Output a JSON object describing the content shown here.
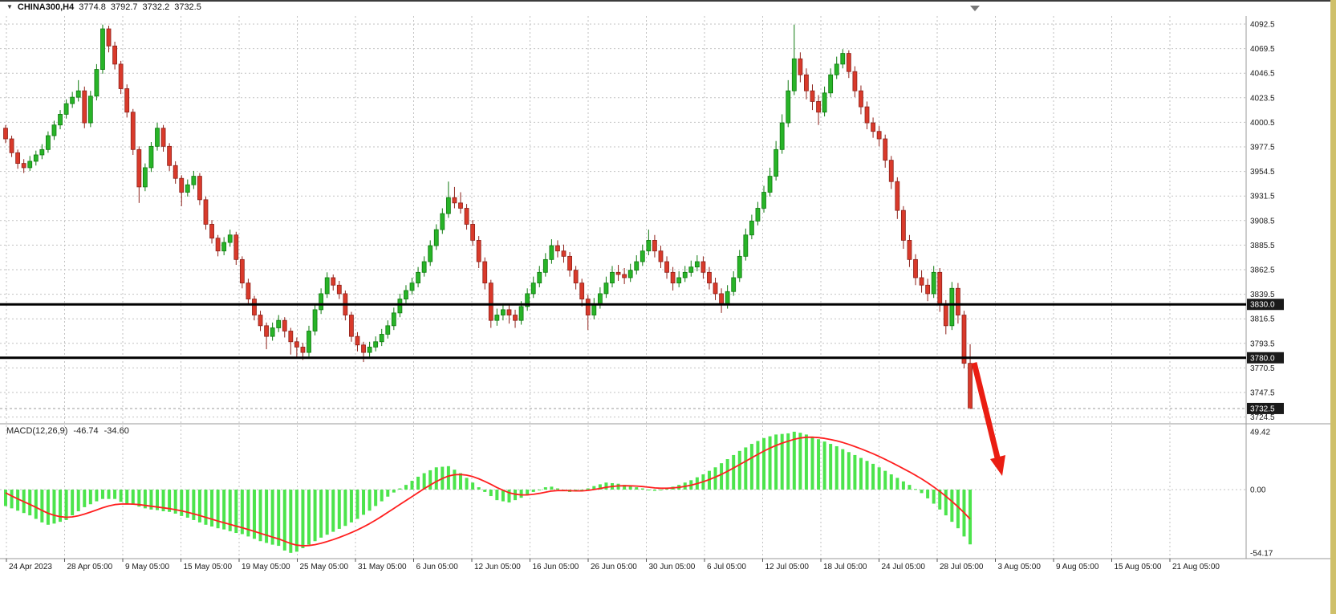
{
  "header": {
    "symbol": "CHINA300,H4",
    "open": "3774.8",
    "high": "3792.7",
    "low": "3732.2",
    "close": "3732.5"
  },
  "indicator_header": {
    "label": "MACD(12,26,9)",
    "main_value": "-46.74",
    "signal_value": "-34.60"
  },
  "icons": {
    "dropdown_triangle": "▼"
  },
  "price_axis": {
    "ticks": [
      "4092.5",
      "4069.5",
      "4046.5",
      "4023.5",
      "4000.5",
      "3977.5",
      "3954.5",
      "3931.5",
      "3908.5",
      "3885.5",
      "3862.5",
      "3839.5",
      "3816.5",
      "3793.5",
      "3770.5",
      "3747.5",
      "3724.5"
    ],
    "tags": [
      {
        "label": "3830.0",
        "value": 3830.0,
        "type": "level"
      },
      {
        "label": "3780.0",
        "value": 3780.0,
        "type": "level"
      },
      {
        "label": "3732.5",
        "value": 3732.5,
        "type": "last-price"
      }
    ]
  },
  "macd_axis": {
    "ticks": [
      {
        "label": "49.42",
        "value": 49.42
      },
      {
        "label": "0.00",
        "value": 0
      },
      {
        "label": "-54.17",
        "value": -54.17
      }
    ]
  },
  "time_axis": {
    "labels": [
      "24 Apr 2023",
      "28 Apr 05:00",
      "9 May 05:00",
      "15 May 05:00",
      "19 May 05:00",
      "25 May 05:00",
      "31 May 05:00",
      "6 Jun 05:00",
      "12 Jun 05:00",
      "16 Jun 05:00",
      "26 Jun 05:00",
      "30 Jun 05:00",
      "6 Jul 05:00",
      "12 Jul 05:00",
      "18 Jul 05:00",
      "24 Jul 05:00",
      "28 Jul 05:00",
      "3 Aug 05:00",
      "9 Aug 05:00",
      "15 Aug 05:00",
      "21 Aug 05:00"
    ]
  },
  "colors": {
    "background": "#ffffff",
    "grid": "#c2c2c2",
    "bull": "#28b428",
    "bull_border": "#0f7a0f",
    "bear": "#d93a2b",
    "bear_border": "#8e211a",
    "histogram": "#4ce44c",
    "signal_line": "#ff1f1f",
    "level_line": "#000000",
    "tag_bg": "#1a1a1a",
    "tag_text": "#ffffff",
    "annotation_arrow": "#ea1d12",
    "right_strip": "#cfc06a"
  },
  "chart_data": [
    {
      "type": "candlestick",
      "title": "CHINA300,H4",
      "symbol": "CHINA300",
      "timeframe": "H4",
      "ylim": [
        3713,
        4099
      ],
      "y_ticks": [
        4092.5,
        4069.5,
        4046.5,
        4023.5,
        4000.5,
        3977.5,
        3954.5,
        3931.5,
        3908.5,
        3885.5,
        3862.5,
        3839.5,
        3816.5,
        3793.5,
        3770.5,
        3747.5,
        3724.5
      ],
      "x_labels": [
        "24 Apr 2023",
        "28 Apr 05:00",
        "9 May 05:00",
        "15 May 05:00",
        "19 May 05:00",
        "25 May 05:00",
        "31 May 05:00",
        "6 Jun 05:00",
        "12 Jun 05:00",
        "16 Jun 05:00",
        "26 Jun 05:00",
        "30 Jun 05:00",
        "6 Jul 05:00",
        "12 Jul 05:00",
        "18 Jul 05:00",
        "24 Jul 05:00",
        "28 Jul 05:00",
        "3 Aug 05:00",
        "9 Aug 05:00",
        "15 Aug 05:00",
        "21 Aug 05:00"
      ],
      "levels": [
        3830.0,
        3780.0
      ],
      "last_price": 3732.5,
      "current_ohlc": [
        3774.8,
        3792.7,
        3732.2,
        3732.5
      ],
      "candles": [
        [
          3995,
          3998,
          3981,
          3985
        ],
        [
          3985,
          3988,
          3968,
          3972
        ],
        [
          3972,
          3975,
          3957,
          3962
        ],
        [
          3962,
          3966,
          3953,
          3958
        ],
        [
          3958,
          3969,
          3955,
          3964
        ],
        [
          3964,
          3974,
          3960,
          3970
        ],
        [
          3970,
          3980,
          3966,
          3975
        ],
        [
          3975,
          3992,
          3972,
          3988
        ],
        [
          3988,
          4002,
          3984,
          3998
        ],
        [
          3998,
          4012,
          3994,
          4008
        ],
        [
          4008,
          4022,
          4004,
          4018
        ],
        [
          4018,
          4029,
          4014,
          4024
        ],
        [
          4024,
          4040,
          4020,
          4030
        ],
        [
          4030,
          4034,
          3995,
          4000
        ],
        [
          4000,
          4030,
          3996,
          4025
        ],
        [
          4025,
          4055,
          4021,
          4050
        ],
        [
          4050,
          4092,
          4046,
          4088
        ],
        [
          4088,
          4091,
          4066,
          4072
        ],
        [
          4072,
          4076,
          4050,
          4055
        ],
        [
          4055,
          4058,
          4027,
          4032
        ],
        [
          4032,
          4036,
          4005,
          4010
        ],
        [
          4010,
          4013,
          3970,
          3975
        ],
        [
          3975,
          3978,
          3925,
          3940
        ],
        [
          3940,
          3962,
          3936,
          3958
        ],
        [
          3958,
          3982,
          3954,
          3978
        ],
        [
          3978,
          4000,
          3974,
          3995
        ],
        [
          3995,
          3998,
          3973,
          3978
        ],
        [
          3978,
          3981,
          3955,
          3960
        ],
        [
          3960,
          3964,
          3943,
          3948
        ],
        [
          3948,
          3951,
          3922,
          3935
        ],
        [
          3935,
          3947,
          3931,
          3942
        ],
        [
          3942,
          3955,
          3938,
          3950
        ],
        [
          3950,
          3953,
          3923,
          3928
        ],
        [
          3928,
          3931,
          3900,
          3905
        ],
        [
          3905,
          3909,
          3887,
          3892
        ],
        [
          3892,
          3895,
          3875,
          3880
        ],
        [
          3880,
          3893,
          3876,
          3888
        ],
        [
          3888,
          3900,
          3884,
          3895
        ],
        [
          3895,
          3898,
          3867,
          3872
        ],
        [
          3872,
          3875,
          3845,
          3850
        ],
        [
          3850,
          3854,
          3830,
          3835
        ],
        [
          3835,
          3838,
          3815,
          3820
        ],
        [
          3820,
          3824,
          3805,
          3810
        ],
        [
          3810,
          3813,
          3788,
          3800
        ],
        [
          3800,
          3813,
          3796,
          3808
        ],
        [
          3808,
          3820,
          3804,
          3815
        ],
        [
          3815,
          3818,
          3799,
          3805
        ],
        [
          3805,
          3808,
          3783,
          3795
        ],
        [
          3795,
          3799,
          3780,
          3790
        ],
        [
          3790,
          3794,
          3778,
          3785
        ],
        [
          3785,
          3810,
          3781,
          3805
        ],
        [
          3805,
          3830,
          3801,
          3825
        ],
        [
          3825,
          3845,
          3821,
          3840
        ],
        [
          3840,
          3860,
          3836,
          3855
        ],
        [
          3855,
          3858,
          3843,
          3848
        ],
        [
          3848,
          3852,
          3835,
          3840
        ],
        [
          3840,
          3843,
          3815,
          3820
        ],
        [
          3820,
          3823,
          3795,
          3800
        ],
        [
          3800,
          3804,
          3786,
          3792
        ],
        [
          3792,
          3795,
          3776,
          3785
        ],
        [
          3785,
          3795,
          3781,
          3790
        ],
        [
          3790,
          3800,
          3786,
          3795
        ],
        [
          3795,
          3807,
          3791,
          3802
        ],
        [
          3802,
          3815,
          3798,
          3810
        ],
        [
          3810,
          3827,
          3806,
          3822
        ],
        [
          3822,
          3840,
          3818,
          3835
        ],
        [
          3835,
          3848,
          3831,
          3843
        ],
        [
          3843,
          3855,
          3839,
          3850
        ],
        [
          3850,
          3865,
          3846,
          3860
        ],
        [
          3860,
          3875,
          3856,
          3870
        ],
        [
          3870,
          3890,
          3866,
          3885
        ],
        [
          3885,
          3905,
          3881,
          3900
        ],
        [
          3900,
          3920,
          3896,
          3915
        ],
        [
          3915,
          3945,
          3911,
          3930
        ],
        [
          3930,
          3940,
          3920,
          3925
        ],
        [
          3925,
          3935,
          3915,
          3920
        ],
        [
          3920,
          3924,
          3900,
          3905
        ],
        [
          3905,
          3909,
          3885,
          3890
        ],
        [
          3890,
          3894,
          3864,
          3870
        ],
        [
          3870,
          3874,
          3844,
          3850
        ],
        [
          3850,
          3853,
          3808,
          3815
        ],
        [
          3815,
          3826,
          3810,
          3820
        ],
        [
          3820,
          3831,
          3815,
          3825
        ],
        [
          3825,
          3830,
          3812,
          3820
        ],
        [
          3820,
          3825,
          3808,
          3815
        ],
        [
          3815,
          3833,
          3811,
          3828
        ],
        [
          3828,
          3845,
          3824,
          3840
        ],
        [
          3840,
          3856,
          3836,
          3850
        ],
        [
          3850,
          3866,
          3846,
          3860
        ],
        [
          3860,
          3878,
          3856,
          3872
        ],
        [
          3872,
          3891,
          3868,
          3885
        ],
        [
          3885,
          3890,
          3874,
          3880
        ],
        [
          3880,
          3886,
          3869,
          3875
        ],
        [
          3875,
          3879,
          3856,
          3862
        ],
        [
          3862,
          3866,
          3844,
          3850
        ],
        [
          3850,
          3854,
          3828,
          3835
        ],
        [
          3835,
          3839,
          3806,
          3820
        ],
        [
          3820,
          3836,
          3816,
          3830
        ],
        [
          3830,
          3846,
          3826,
          3840
        ],
        [
          3840,
          3856,
          3836,
          3850
        ],
        [
          3850,
          3866,
          3846,
          3860
        ],
        [
          3860,
          3867,
          3852,
          3858
        ],
        [
          3858,
          3864,
          3849,
          3855
        ],
        [
          3855,
          3868,
          3851,
          3862
        ],
        [
          3862,
          3876,
          3858,
          3870
        ],
        [
          3870,
          3886,
          3866,
          3880
        ],
        [
          3880,
          3900,
          3876,
          3890
        ],
        [
          3890,
          3895,
          3874,
          3880
        ],
        [
          3880,
          3885,
          3864,
          3870
        ],
        [
          3870,
          3875,
          3854,
          3860
        ],
        [
          3860,
          3865,
          3843,
          3850
        ],
        [
          3850,
          3861,
          3846,
          3855
        ],
        [
          3855,
          3866,
          3851,
          3860
        ],
        [
          3860,
          3871,
          3856,
          3865
        ],
        [
          3865,
          3876,
          3861,
          3870
        ],
        [
          3870,
          3875,
          3854,
          3860
        ],
        [
          3860,
          3865,
          3844,
          3850
        ],
        [
          3850,
          3855,
          3834,
          3840
        ],
        [
          3840,
          3845,
          3822,
          3830
        ],
        [
          3830,
          3848,
          3826,
          3842
        ],
        [
          3842,
          3861,
          3838,
          3855
        ],
        [
          3855,
          3881,
          3851,
          3875
        ],
        [
          3875,
          3901,
          3871,
          3895
        ],
        [
          3895,
          3914,
          3891,
          3908
        ],
        [
          3908,
          3926,
          3904,
          3920
        ],
        [
          3920,
          3941,
          3916,
          3935
        ],
        [
          3935,
          3958,
          3931,
          3950
        ],
        [
          3950,
          3983,
          3946,
          3975
        ],
        [
          3975,
          4008,
          3971,
          4000
        ],
        [
          4000,
          4040,
          3996,
          4030
        ],
        [
          4030,
          4092,
          4026,
          4060
        ],
        [
          4060,
          4066,
          4038,
          4045
        ],
        [
          4045,
          4051,
          4022,
          4030
        ],
        [
          4030,
          4036,
          4012,
          4020
        ],
        [
          4020,
          4026,
          3998,
          4010
        ],
        [
          4010,
          4034,
          4006,
          4028
        ],
        [
          4028,
          4051,
          4024,
          4045
        ],
        [
          4045,
          4062,
          4041,
          4055
        ],
        [
          4055,
          4069,
          4051,
          4065
        ],
        [
          4065,
          4068,
          4042,
          4048
        ],
        [
          4048,
          4053,
          4024,
          4030
        ],
        [
          4030,
          4035,
          4008,
          4015
        ],
        [
          4015,
          4020,
          3994,
          4000
        ],
        [
          4000,
          4005,
          3986,
          3992
        ],
        [
          3992,
          3997,
          3978,
          3985
        ],
        [
          3985,
          3989,
          3958,
          3965
        ],
        [
          3965,
          3969,
          3938,
          3945
        ],
        [
          3945,
          3949,
          3910,
          3918
        ],
        [
          3918,
          3922,
          3882,
          3890
        ],
        [
          3890,
          3895,
          3865,
          3872
        ],
        [
          3872,
          3877,
          3848,
          3855
        ],
        [
          3855,
          3862,
          3841,
          3848
        ],
        [
          3848,
          3854,
          3833,
          3840
        ],
        [
          3840,
          3866,
          3836,
          3860
        ],
        [
          3860,
          3864,
          3823,
          3830
        ],
        [
          3830,
          3834,
          3802,
          3810
        ],
        [
          3810,
          3851,
          3806,
          3845
        ],
        [
          3845,
          3850,
          3812,
          3820
        ],
        [
          3820,
          3824,
          3770,
          3774.8
        ],
        [
          3774.8,
          3792.7,
          3732.2,
          3732.5
        ]
      ]
    },
    {
      "type": "macd",
      "label": "MACD(12,26,9)",
      "params": [
        12,
        26,
        9
      ],
      "main": -46.74,
      "signal": -34.6,
      "ylim": [
        -54.17,
        49.42
      ],
      "y_ticks": [
        49.42,
        0,
        -54.17
      ],
      "signal_ema_period": 9,
      "histogram": [
        -14,
        -16,
        -18,
        -20,
        -22,
        -25,
        -28,
        -30,
        -29,
        -27.5,
        -26,
        -22,
        -18.5,
        -15,
        -12.5,
        -10,
        -8,
        -8,
        -8,
        -10.5,
        -12,
        -13,
        -14.5,
        -16,
        -17,
        -17.5,
        -18.5,
        -19,
        -20.5,
        -22.5,
        -24,
        -26,
        -28,
        -30,
        -31.5,
        -33,
        -34,
        -35.5,
        -37,
        -38,
        -40,
        -42,
        -44,
        -45.5,
        -47,
        -48,
        -52,
        -54,
        -53,
        -50,
        -47,
        -44,
        -41,
        -38.5,
        -36,
        -33.5,
        -31,
        -28,
        -25,
        -21.5,
        -18,
        -14,
        -10,
        -6,
        -2.5,
        1,
        4,
        7.5,
        11,
        14,
        16.5,
        19,
        19.5,
        20,
        17,
        14,
        10,
        6,
        2,
        -2,
        -5.5,
        -9,
        -10,
        -11,
        -9,
        -7,
        -4.5,
        -2,
        0,
        2,
        2.5,
        1,
        -0.5,
        -2,
        -1.5,
        -1,
        1,
        3,
        4.5,
        6,
        5.5,
        5,
        4,
        3,
        2,
        1,
        0,
        -1,
        0,
        1,
        2.5,
        4,
        6,
        8,
        10.5,
        13,
        16,
        19,
        22.5,
        26,
        29.5,
        33,
        36,
        39,
        41.5,
        44,
        45.5,
        47,
        47.5,
        48,
        49.4,
        48.5,
        47,
        45,
        43,
        41,
        39,
        37,
        34.5,
        32,
        29.5,
        27,
        24.5,
        22,
        19,
        16,
        13,
        10,
        7,
        4,
        0.5,
        -3,
        -7.5,
        -12,
        -17,
        -22,
        -27.5,
        -33,
        -40,
        -46.74
      ]
    }
  ]
}
